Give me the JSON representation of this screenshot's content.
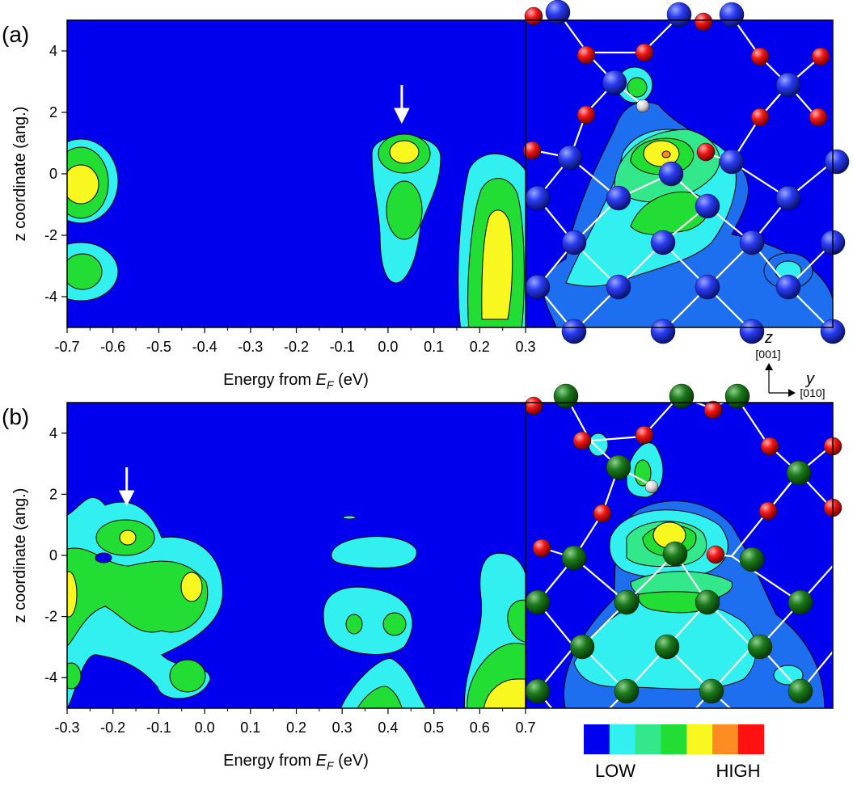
{
  "chart_data": [
    {
      "type": "heatmap",
      "panel_label": "(a)",
      "xlabel_prefix": "Energy from ",
      "xlabel_sym": "E",
      "xlabel_sub": "F",
      "xlabel_suffix": " (eV)",
      "ylabel": "z coordinate (ang.)",
      "xlim": [
        -0.7,
        0.3
      ],
      "ylim": [
        -5,
        5
      ],
      "xticks": [
        "-0.7",
        "-0.6",
        "-0.5",
        "-0.4",
        "-0.3",
        "-0.2",
        "-0.1",
        "0.0",
        "0.1",
        "0.2",
        "0.3"
      ],
      "yticks": [
        "-4",
        "-2",
        "0",
        "2",
        "4"
      ],
      "arrow_x": 0.03,
      "features": [
        {
          "x": -0.66,
          "y": -0.4,
          "level": 4
        },
        {
          "x": -0.66,
          "y": -3.1,
          "level": 3
        },
        {
          "x": 0.03,
          "y": 0.6,
          "level": 4
        },
        {
          "x": 0.03,
          "y": -1.3,
          "level": 3
        },
        {
          "x": 0.23,
          "y": -3.0,
          "level": 4
        }
      ]
    },
    {
      "type": "heatmap",
      "panel_label": "(b)",
      "xlabel_prefix": "Energy from ",
      "xlabel_sym": "E",
      "xlabel_sub": "F",
      "xlabel_suffix": " (eV)",
      "ylabel": "z coordinate (ang.)",
      "xlim": [
        -0.3,
        0.7
      ],
      "ylim": [
        -5,
        5
      ],
      "xticks": [
        "-0.3",
        "-0.2",
        "-0.1",
        "0.0",
        "0.1",
        "0.2",
        "0.3",
        "0.4",
        "0.5",
        "0.6",
        "0.7"
      ],
      "yticks": [
        "-4",
        "-2",
        "0",
        "2",
        "4"
      ],
      "arrow_x": -0.17,
      "features": [
        {
          "x": -0.16,
          "y": 0.6,
          "level": 4
        },
        {
          "x": -0.04,
          "y": -1.0,
          "level": 4
        },
        {
          "x": -0.29,
          "y": -1.0,
          "level": 4
        },
        {
          "x": -0.04,
          "y": -4.0,
          "level": 3
        },
        {
          "x": 0.4,
          "y": -2.2,
          "level": 2
        },
        {
          "x": 0.67,
          "y": -3.5,
          "level": 4
        }
      ]
    }
  ],
  "axes_labels": {
    "z_label": "z",
    "z_dir": "[001]",
    "y_label": "y",
    "y_dir": "[010]"
  },
  "colorbar": {
    "colors": [
      "#0000ee",
      "#33f0f0",
      "#33e88a",
      "#22dd33",
      "#f8f820",
      "#ff8c22",
      "#ff1111"
    ],
    "low_label": "LOW",
    "high_label": "HIGH"
  },
  "colors": {
    "background_level": "#0000ee",
    "atom_blue": "#2233ee",
    "atom_green": "#116611",
    "atom_red": "#ee1111",
    "atom_hydrogen": "#dddddd"
  }
}
